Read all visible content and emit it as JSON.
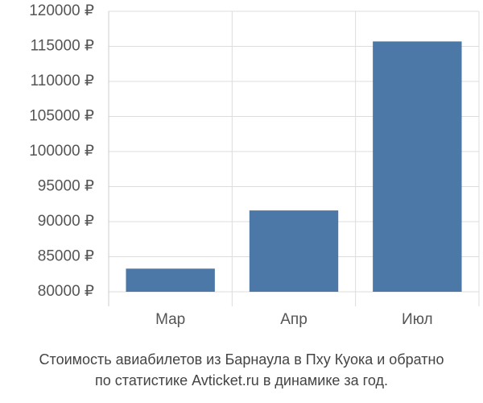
{
  "chart_data": {
    "type": "bar",
    "title": [
      "Стоимость авиабилетов из Барнаула в Пху Куока и обратно",
      "по статистике Avticket.ru в динамике за год."
    ],
    "categories": [
      "Мар",
      "Апр",
      "Июл"
    ],
    "values": [
      83300,
      91600,
      115700
    ],
    "color": "#4c78a8",
    "ylim": [
      80000,
      120000
    ],
    "yticks": [
      {
        "value": 80000,
        "label": "80000 ₽"
      },
      {
        "value": 85000,
        "label": "85000 ₽"
      },
      {
        "value": 90000,
        "label": "90000 ₽"
      },
      {
        "value": 95000,
        "label": "95000 ₽"
      },
      {
        "value": 100000,
        "label": "100000 ₽"
      },
      {
        "value": 105000,
        "label": "105000 ₽"
      },
      {
        "value": 110000,
        "label": "110000 ₽"
      },
      {
        "value": 115000,
        "label": "115000 ₽"
      },
      {
        "value": 120000,
        "label": "120000 ₽"
      }
    ],
    "grid": true
  }
}
